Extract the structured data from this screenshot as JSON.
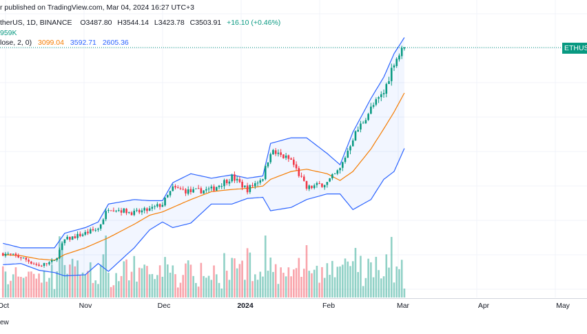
{
  "header": {
    "published": "r published on TradingView.com, Mar 04, 2024 16:27 UTC+3",
    "symbol": "therUS, 1D, BINANCE",
    "open": "O3487.80",
    "high": "H3544.14",
    "low": "L3423.78",
    "close": "C3503.91",
    "change": "+16.10 (+0.46%)"
  },
  "volume_legend": "959K",
  "bb_legend": {
    "label": "lose, 2, 0)",
    "basis": "3099.04",
    "upper": "3592.71",
    "lower": "2605.36"
  },
  "price_tag": "ETHUS",
  "footer_label": "ew",
  "colors": {
    "up": "#089981",
    "down": "#f23645",
    "basis": "#f57c00",
    "bands": "#2962ff",
    "band_fill": "#2962ff"
  },
  "chart_data": {
    "type": "candlestick",
    "x_ticks": [
      "Oct",
      "Nov",
      "Dec",
      "2024",
      "Feb",
      "Mar",
      "Apr",
      "May"
    ],
    "last_close": 3503.91,
    "anchors": [
      {
        "date": "2023-09-30",
        "close": 1670,
        "upper": 1760,
        "basis": 1660,
        "lower": 1570
      },
      {
        "date": "2023-10-07",
        "close": 1635,
        "upper": 1720,
        "basis": 1650,
        "lower": 1580
      },
      {
        "date": "2023-10-14",
        "close": 1560,
        "upper": 1720,
        "basis": 1620,
        "lower": 1520
      },
      {
        "date": "2023-10-20",
        "close": 1600,
        "upper": 1720,
        "basis": 1610,
        "lower": 1500
      },
      {
        "date": "2023-10-24",
        "close": 1790,
        "upper": 1850,
        "basis": 1660,
        "lower": 1470
      },
      {
        "date": "2023-11-01",
        "close": 1850,
        "upper": 1900,
        "basis": 1720,
        "lower": 1480
      },
      {
        "date": "2023-11-06",
        "close": 1890,
        "upper": 1950,
        "basis": 1770,
        "lower": 1580
      },
      {
        "date": "2023-11-10",
        "close": 2080,
        "upper": 2110,
        "basis": 1810,
        "lower": 1510
      },
      {
        "date": "2023-11-20",
        "close": 2030,
        "upper": 2150,
        "basis": 1930,
        "lower": 1720
      },
      {
        "date": "2023-11-26",
        "close": 2060,
        "upper": 2140,
        "basis": 2010,
        "lower": 1880
      },
      {
        "date": "2023-12-01",
        "close": 2110,
        "upper": 2140,
        "basis": 2040,
        "lower": 1950
      },
      {
        "date": "2023-12-05",
        "close": 2250,
        "upper": 2300,
        "basis": 2080,
        "lower": 1900
      },
      {
        "date": "2023-12-12",
        "close": 2220,
        "upper": 2380,
        "basis": 2150,
        "lower": 1940
      },
      {
        "date": "2023-12-20",
        "close": 2240,
        "upper": 2340,
        "basis": 2220,
        "lower": 2110
      },
      {
        "date": "2023-12-28",
        "close": 2350,
        "upper": 2370,
        "basis": 2240,
        "lower": 2110
      },
      {
        "date": "2024-01-03",
        "close": 2240,
        "upper": 2340,
        "basis": 2250,
        "lower": 2160
      },
      {
        "date": "2024-01-09",
        "close": 2350,
        "upper": 2360,
        "basis": 2270,
        "lower": 2170
      },
      {
        "date": "2024-01-12",
        "close": 2580,
        "upper": 2650,
        "basis": 2330,
        "lower": 2050
      },
      {
        "date": "2024-01-20",
        "close": 2500,
        "upper": 2700,
        "basis": 2400,
        "lower": 2080
      },
      {
        "date": "2024-01-26",
        "close": 2250,
        "upper": 2700,
        "basis": 2420,
        "lower": 2150
      },
      {
        "date": "2024-02-03",
        "close": 2300,
        "upper": 2560,
        "basis": 2380,
        "lower": 2200
      },
      {
        "date": "2024-02-08",
        "close": 2420,
        "upper": 2460,
        "basis": 2320,
        "lower": 2200
      },
      {
        "date": "2024-02-13",
        "close": 2700,
        "upper": 2750,
        "basis": 2400,
        "lower": 2060
      },
      {
        "date": "2024-02-20",
        "close": 2960,
        "upper": 3050,
        "basis": 2600,
        "lower": 2150
      },
      {
        "date": "2024-02-25",
        "close": 3100,
        "upper": 3240,
        "basis": 2780,
        "lower": 2330
      },
      {
        "date": "2024-02-29",
        "close": 3380,
        "upper": 3450,
        "basis": 2930,
        "lower": 2400
      },
      {
        "date": "2024-03-04",
        "close": 3503.91,
        "upper": 3592.71,
        "basis": 3099.04,
        "lower": 2605.36
      }
    ]
  }
}
